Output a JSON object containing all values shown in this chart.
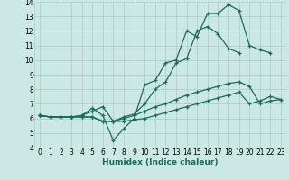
{
  "xlabel": "Humidex (Indice chaleur)",
  "xlim": [
    -0.5,
    23.5
  ],
  "ylim": [
    4,
    14
  ],
  "xticks": [
    0,
    1,
    2,
    3,
    4,
    5,
    6,
    7,
    8,
    9,
    10,
    11,
    12,
    13,
    14,
    15,
    16,
    17,
    18,
    19,
    20,
    21,
    22,
    23
  ],
  "yticks": [
    4,
    5,
    6,
    7,
    8,
    9,
    10,
    11,
    12,
    13,
    14
  ],
  "background_color": "#cce8e4",
  "grid_color": "#aaccc8",
  "line_color": "#1a6b5a",
  "lines": [
    {
      "x": [
        0,
        1,
        2,
        3,
        4,
        5,
        6,
        7,
        8,
        9,
        10,
        11,
        12,
        13,
        14,
        15,
        16,
        17,
        18,
        19,
        20,
        21,
        22
      ],
      "y": [
        6.2,
        6.1,
        6.1,
        6.1,
        6.2,
        6.7,
        6.2,
        4.5,
        5.3,
        6.0,
        8.3,
        8.6,
        9.8,
        10.0,
        12.0,
        11.6,
        13.2,
        13.2,
        13.8,
        13.4,
        11.0,
        10.7,
        10.5
      ]
    },
    {
      "x": [
        0,
        1,
        2,
        3,
        4,
        5,
        6,
        7,
        8,
        9,
        10,
        11,
        12,
        13,
        14,
        15,
        16,
        17,
        18,
        19
      ],
      "y": [
        6.2,
        6.1,
        6.1,
        6.1,
        6.2,
        6.5,
        6.8,
        5.8,
        6.1,
        6.3,
        7.0,
        8.0,
        8.5,
        9.8,
        10.1,
        12.0,
        12.3,
        11.8,
        10.8,
        10.5
      ]
    },
    {
      "x": [
        0,
        1,
        2,
        3,
        4,
        5,
        6,
        7,
        8,
        9,
        10,
        11,
        12,
        13,
        14,
        15,
        16,
        17,
        18,
        19,
        20,
        21,
        22,
        23
      ],
      "y": [
        6.2,
        6.1,
        6.1,
        6.1,
        6.1,
        6.1,
        5.8,
        5.8,
        6.0,
        6.2,
        6.5,
        6.8,
        7.0,
        7.3,
        7.6,
        7.8,
        8.0,
        8.2,
        8.4,
        8.5,
        8.2,
        7.0,
        7.2,
        7.3
      ]
    },
    {
      "x": [
        0,
        1,
        2,
        3,
        4,
        5,
        6,
        7,
        8,
        9,
        10,
        11,
        12,
        13,
        14,
        15,
        16,
        17,
        18,
        19,
        20,
        21,
        22,
        23
      ],
      "y": [
        6.2,
        6.1,
        6.1,
        6.1,
        6.1,
        6.1,
        5.8,
        5.8,
        5.8,
        5.9,
        6.0,
        6.2,
        6.4,
        6.6,
        6.8,
        7.0,
        7.2,
        7.4,
        7.6,
        7.8,
        7.0,
        7.2,
        7.5,
        7.3
      ]
    }
  ]
}
